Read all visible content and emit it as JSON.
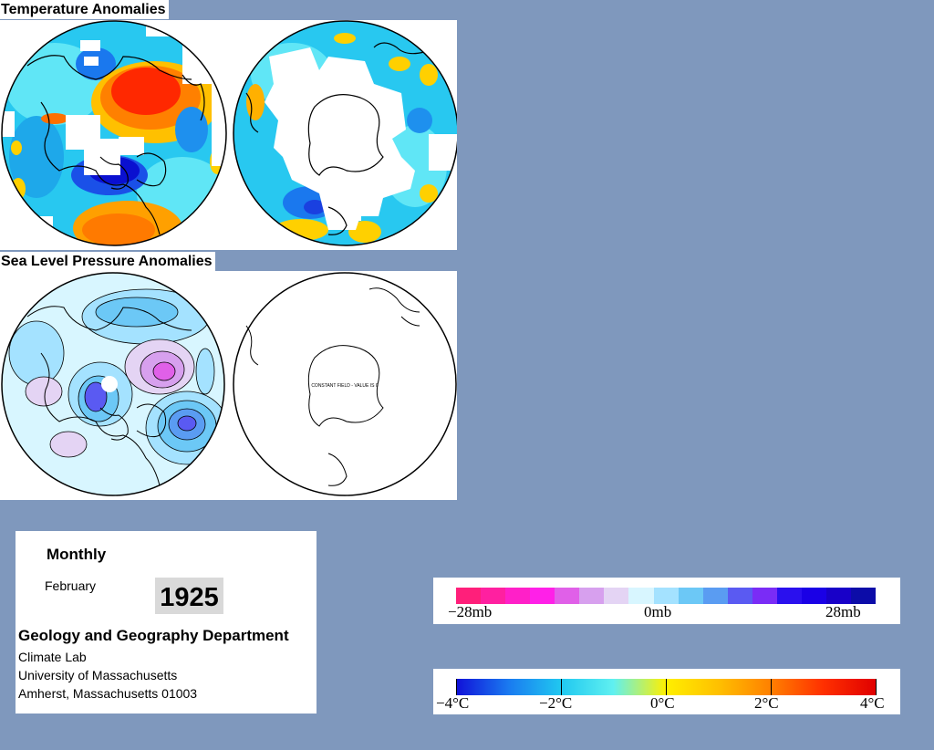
{
  "sections": {
    "temperature_title": "Temperature Anomalies",
    "pressure_title": "Sea Level Pressure Anomalies"
  },
  "maps": {
    "constant_field_note": "CONSTANT FIELD - VALUE IS 0"
  },
  "info": {
    "frequency": "Monthly",
    "month": "February",
    "year": "1925",
    "department": "Geology and Geography Department",
    "lab": "Climate Lab",
    "university": "University of Massachusetts",
    "city": "Amherst, Massachusetts 01003"
  },
  "pressure_scale": {
    "labels": [
      "−28mb",
      "0mb",
      "28mb"
    ],
    "colors": [
      "#ff1f7a",
      "#ff20a0",
      "#ff20c8",
      "#ff20e8",
      "#e060e8",
      "#d7a0ee",
      "#e4d4f4",
      "#d8f6ff",
      "#a4e2ff",
      "#6cc8f6",
      "#5a9cf2",
      "#5a5af2",
      "#7a2cf6",
      "#2a10ee",
      "#1a00e6",
      "#1800c8",
      "#0c0ca8"
    ]
  },
  "temperature_scale": {
    "labels": [
      "−4°C",
      "−2°C",
      "0°C",
      "2°C",
      "4°C"
    ],
    "gradient": [
      "#1010d8",
      "#1a7af0",
      "#20c8f0",
      "#60f0f0",
      "#fff000",
      "#ffc000",
      "#ff8000",
      "#ff3000",
      "#e00000"
    ]
  }
}
